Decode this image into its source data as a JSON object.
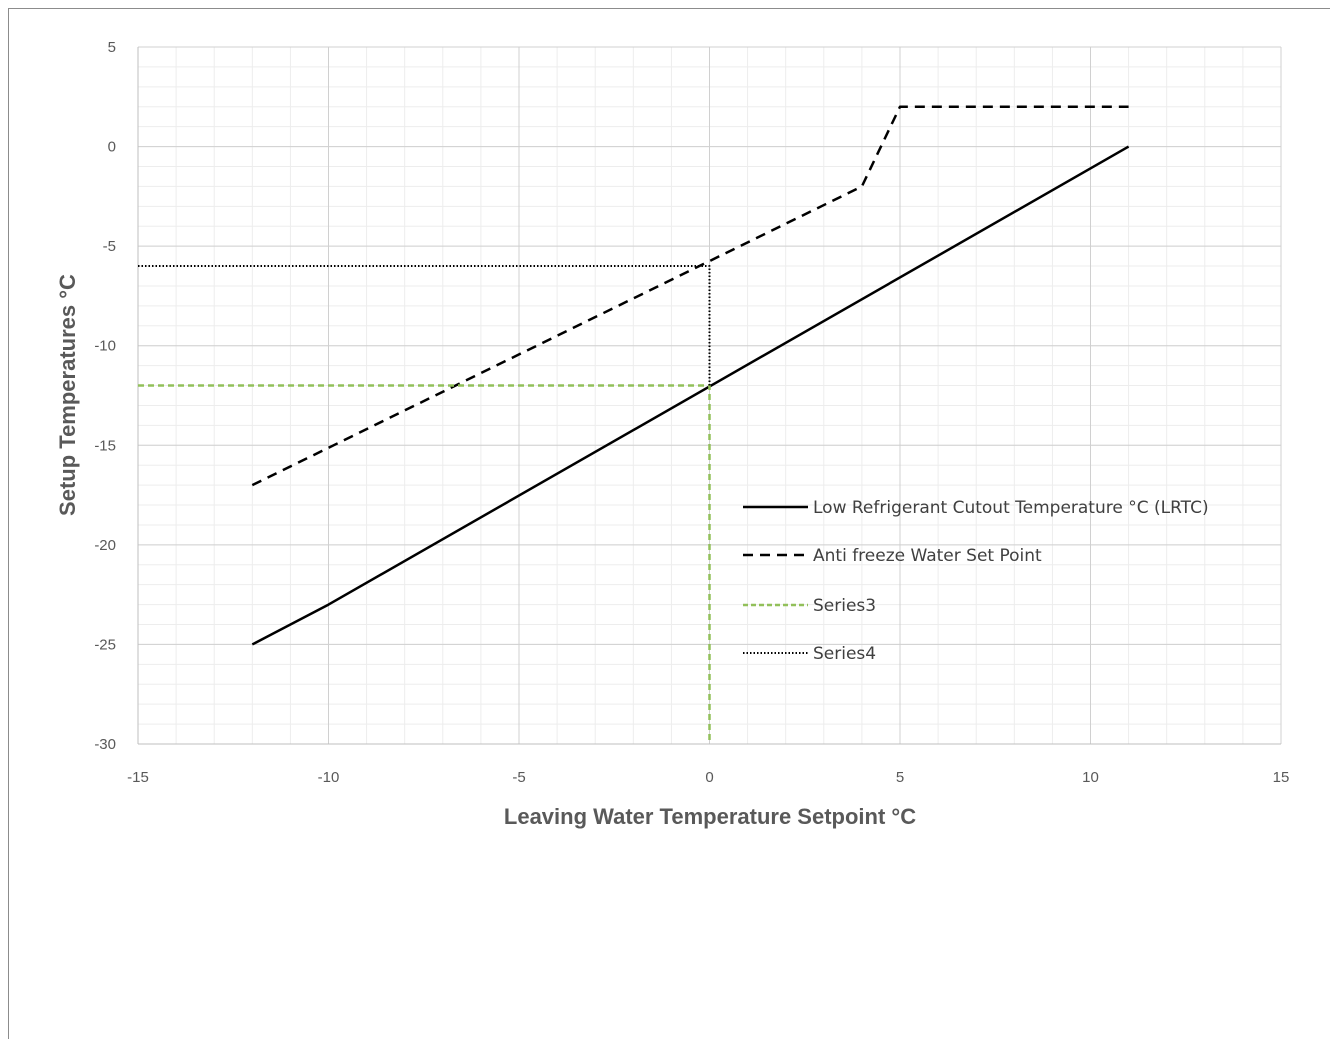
{
  "chart_data": {
    "type": "line",
    "title": "",
    "xlabel": "Leaving Water Temperature Setpoint °C",
    "ylabel": "Setup Temperatures °C",
    "xlim": [
      -15,
      15
    ],
    "ylim": [
      -30,
      5
    ],
    "x_ticks": [
      -15,
      -10,
      -5,
      0,
      5,
      10,
      15
    ],
    "y_ticks": [
      5,
      0,
      -5,
      -10,
      -15,
      -20,
      -25,
      -30
    ],
    "x_minor_step": 1,
    "y_minor_step": 1,
    "grid": true,
    "legend_position": "right-center",
    "series": [
      {
        "name": "Low Refrigerant Cutout Temperature °C  (LRTC)",
        "style": "solid",
        "color": "#000000",
        "x": [
          -12,
          -10,
          11
        ],
        "y": [
          -25,
          -23,
          0
        ]
      },
      {
        "name": "Anti freeze Water Set Point",
        "style": "dashed",
        "color": "#000000",
        "x": [
          -12,
          4,
          5,
          11
        ],
        "y": [
          -17,
          -2,
          2,
          2
        ]
      },
      {
        "name": "Series3",
        "style": "dashed",
        "color": "#92c05a",
        "x": [
          -15,
          0,
          0
        ],
        "y": [
          -12,
          -12,
          -30
        ]
      },
      {
        "name": "Series4",
        "style": "dotted",
        "color": "#000000",
        "x": [
          -15,
          0,
          0
        ],
        "y": [
          -6,
          -6,
          -12
        ]
      }
    ]
  }
}
